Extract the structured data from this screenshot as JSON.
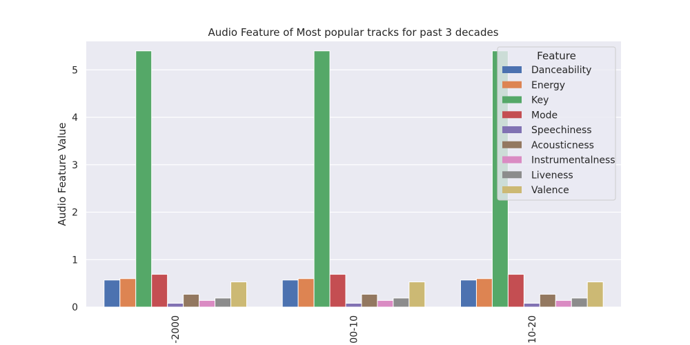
{
  "chart_data": {
    "type": "bar",
    "title": "Audio Feature of Most popular tracks for past 3 decades",
    "xlabel": "",
    "ylabel": "Audio Feature Value",
    "categories": [
      "-2000",
      "00-10",
      "10-20"
    ],
    "ylim": [
      0,
      5.6
    ],
    "yticks": [
      0,
      1,
      2,
      3,
      4,
      5
    ],
    "grid": true,
    "legend": {
      "title": "Feature",
      "position": "top-right"
    },
    "series": [
      {
        "name": "Danceability",
        "color": "#4c72b0",
        "values": [
          0.57,
          0.57,
          0.57
        ]
      },
      {
        "name": "Energy",
        "color": "#dd8452",
        "values": [
          0.6,
          0.6,
          0.6
        ]
      },
      {
        "name": "Key",
        "color": "#55a868",
        "values": [
          5.4,
          5.4,
          5.4
        ]
      },
      {
        "name": "Mode",
        "color": "#c44e52",
        "values": [
          0.69,
          0.69,
          0.69
        ]
      },
      {
        "name": "Speechiness",
        "color": "#8172b3",
        "values": [
          0.08,
          0.08,
          0.08
        ]
      },
      {
        "name": "Acousticness",
        "color": "#937860",
        "values": [
          0.27,
          0.27,
          0.27
        ]
      },
      {
        "name": "Instrumentalness",
        "color": "#da8bc3",
        "values": [
          0.14,
          0.14,
          0.14
        ]
      },
      {
        "name": "Liveness",
        "color": "#8c8c8c",
        "values": [
          0.19,
          0.19,
          0.19
        ]
      },
      {
        "name": "Valence",
        "color": "#ccb974",
        "values": [
          0.53,
          0.53,
          0.53
        ]
      }
    ]
  }
}
